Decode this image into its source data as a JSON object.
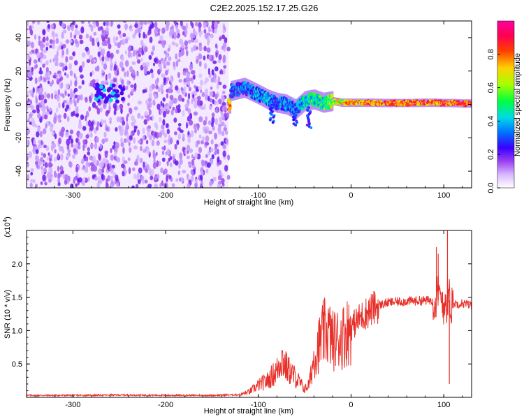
{
  "title": "C2E2.2025.152.17.25.G26",
  "chart_data": [
    {
      "type": "heatmap",
      "xlabel": "Height of straight line (km)",
      "ylabel": "Frequency (Hz)",
      "xlim": [
        -350,
        130
      ],
      "ylim": [
        -50,
        50
      ],
      "x_ticks": [
        -300,
        -200,
        -100,
        0,
        100
      ],
      "y_ticks": [
        -40,
        -20,
        0,
        20,
        40
      ],
      "colorbar": {
        "label": "Normalized spectral amplitude",
        "range": [
          0,
          1
        ],
        "ticks": [
          "0.0",
          "0.2",
          "0.4",
          "0.6",
          "0.8"
        ],
        "colors": [
          "#ffffff",
          "#c8a0ff",
          "#8a2be2",
          "#3a00ff",
          "#0080ff",
          "#00e0e0",
          "#00ff40",
          "#c0ff00",
          "#ffd000",
          "#ff4000",
          "#ff0060",
          "#ff00a0"
        ]
      },
      "features": [
        {
          "name": "noise-region",
          "x_range": [
            -350,
            -132
          ],
          "y_range": [
            -50,
            50
          ],
          "level": 0.18
        },
        {
          "name": "early-blob",
          "x_range": [
            -275,
            -245
          ],
          "y_center": 7,
          "level": 0.45
        },
        {
          "name": "signal-trace",
          "x": [
            -130,
            -115,
            -100,
            -90,
            -80,
            -70,
            -60,
            -50,
            -40,
            -30,
            -20,
            -10,
            0,
            20,
            40,
            60,
            80,
            90,
            100,
            110,
            120,
            130
          ],
          "y": [
            8,
            10,
            6,
            3,
            1,
            0,
            -3,
            2,
            3,
            1,
            2,
            1,
            1,
            1,
            0.8,
            0.8,
            1,
            1,
            0.8,
            0.8,
            0.5,
            0.5
          ],
          "level": [
            0.4,
            0.45,
            0.5,
            0.5,
            0.45,
            0.5,
            0.5,
            0.55,
            0.6,
            0.6,
            0.75,
            0.8,
            0.85,
            0.9,
            0.92,
            0.9,
            0.95,
            0.9,
            0.95,
            0.9,
            0.95,
            0.9
          ]
        }
      ]
    },
    {
      "type": "line",
      "xlabel": "Height of straight line (km)",
      "ylabel": "SNR (10 * v/v)",
      "scale_note": "(x10",
      "scale_exp": "4",
      "scale_close": ")",
      "xlim": [
        -350,
        130
      ],
      "ylim": [
        0,
        25000
      ],
      "x_ticks": [
        -300,
        -200,
        -100,
        0,
        100
      ],
      "y_tick_values": [
        5000,
        10000,
        15000,
        20000
      ],
      "y_tick_labels": [
        "0.5",
        "1.0",
        "1.5",
        "2.0"
      ],
      "series": [
        {
          "color": "#e8302a",
          "x": [
            -350,
            -300,
            -250,
            -200,
            -150,
            -120,
            -110,
            -100,
            -90,
            -80,
            -75,
            -70,
            -60,
            -50,
            -45,
            -40,
            -30,
            -25,
            -20,
            -10,
            0,
            10,
            20,
            30,
            40,
            60,
            80,
            90,
            95,
            100,
            105,
            110,
            120,
            130
          ],
          "y": [
            300,
            300,
            350,
            300,
            300,
            400,
            800,
            1800,
            2500,
            4000,
            6000,
            4500,
            3000,
            1200,
            2000,
            6000,
            9500,
            10000,
            8500,
            9000,
            10500,
            12000,
            13000,
            13800,
            14200,
            14400,
            14500,
            14500,
            15000,
            14300,
            14800,
            14000,
            14100,
            13800
          ],
          "spikes": [
            {
              "x": 92,
              "y": 22500
            },
            {
              "x": 94,
              "y": 21500
            },
            {
              "x": 104,
              "y": 26000
            },
            {
              "x": 106,
              "y": 2000
            }
          ]
        }
      ]
    }
  ]
}
